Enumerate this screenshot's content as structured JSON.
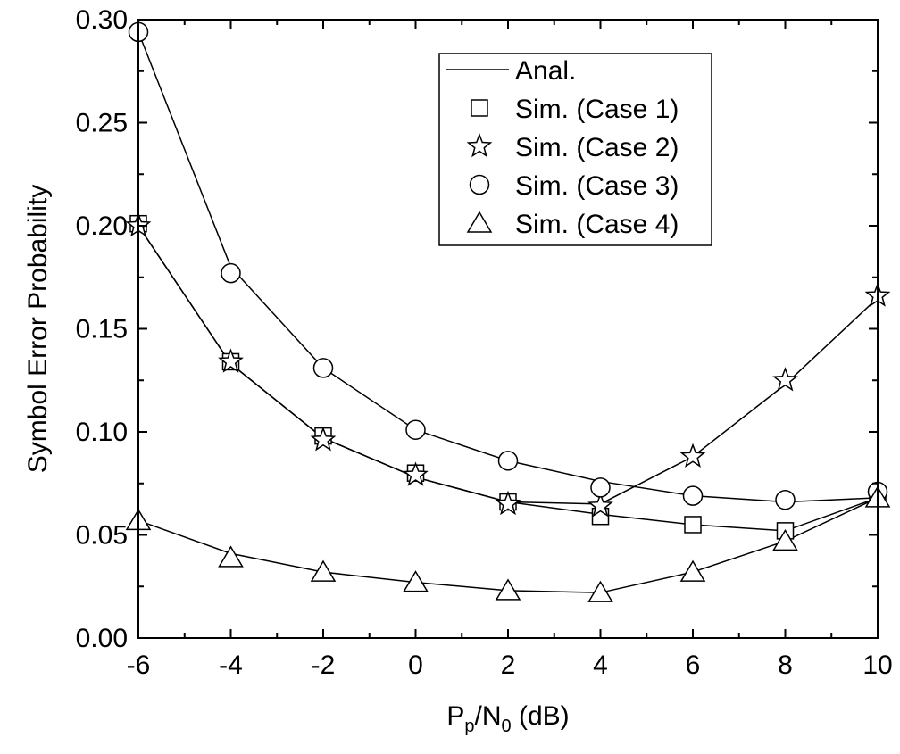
{
  "chart_data": {
    "type": "line",
    "xlabel": {
      "main": "P",
      "sub1": "p",
      "mid": "/N",
      "sub2": "0",
      "tail": " (dB)"
    },
    "ylabel": "Symbol Error Probability",
    "xlim": [
      -6,
      10
    ],
    "ylim": [
      0,
      0.3
    ],
    "xticks": [
      -6,
      -4,
      -2,
      0,
      2,
      4,
      6,
      8,
      10
    ],
    "xtick_labels": [
      "-6",
      "-4",
      "-2",
      "0",
      "2",
      "4",
      "6",
      "8",
      "10"
    ],
    "yticks": [
      0,
      0.05,
      0.1,
      0.15,
      0.2,
      0.25,
      0.3
    ],
    "ytick_labels": [
      "0.00",
      "0.05",
      "0.10",
      "0.15",
      "0.20",
      "0.25",
      "0.30"
    ],
    "grid": false,
    "legend_position": "top-right",
    "legend": [
      {
        "label": "Anal.",
        "marker": "line"
      },
      {
        "label": "Sim. (Case 1)",
        "marker": "square"
      },
      {
        "label": "Sim. (Case 2)",
        "marker": "star"
      },
      {
        "label": "Sim. (Case 3)",
        "marker": "circle"
      },
      {
        "label": "Sim. (Case 4)",
        "marker": "triangle"
      }
    ],
    "x": [
      -6,
      -4,
      -2,
      0,
      2,
      4,
      6,
      8,
      10
    ],
    "series": [
      {
        "case": 1,
        "marker": "square",
        "anal": [
          0.2,
          0.133,
          0.097,
          0.078,
          0.066,
          0.06,
          0.055,
          0.052,
          0.068
        ],
        "sim": [
          0.201,
          0.134,
          0.098,
          0.08,
          0.066,
          0.059,
          0.055,
          0.052,
          0.068
        ]
      },
      {
        "case": 2,
        "marker": "star",
        "anal": [
          0.2,
          0.133,
          0.097,
          0.078,
          0.066,
          0.065,
          0.088,
          0.123,
          0.165
        ],
        "sim": [
          0.2,
          0.134,
          0.096,
          0.079,
          0.065,
          0.064,
          0.088,
          0.125,
          0.166
        ]
      },
      {
        "case": 3,
        "marker": "circle",
        "anal": [
          0.294,
          0.18,
          0.131,
          0.101,
          0.086,
          0.076,
          0.069,
          0.066,
          0.068
        ],
        "sim": [
          0.294,
          0.177,
          0.131,
          0.101,
          0.086,
          0.073,
          0.069,
          0.067,
          0.071
        ]
      },
      {
        "case": 4,
        "marker": "triangle",
        "anal": [
          0.057,
          0.041,
          0.032,
          0.027,
          0.023,
          0.022,
          0.032,
          0.047,
          0.068
        ],
        "sim": [
          0.057,
          0.039,
          0.032,
          0.027,
          0.023,
          0.022,
          0.032,
          0.047,
          0.068
        ]
      }
    ]
  }
}
